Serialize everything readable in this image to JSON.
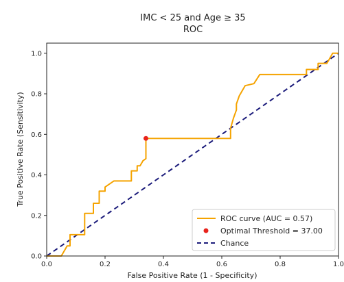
{
  "chart_data": {
    "type": "line",
    "title": "IMC < 25 and Age ≥ 35",
    "subtitle": "ROC",
    "xlabel": "False Positive Rate (1 - Specificity)",
    "ylabel": "True Positive Rate (Sensitivity)",
    "xlim": [
      0,
      1
    ],
    "ylim": [
      0,
      1.05
    ],
    "x_ticks": [
      "0.0",
      "0.2",
      "0.4",
      "0.6",
      "0.8",
      "1.0"
    ],
    "y_ticks": [
      "0.0",
      "0.2",
      "0.4",
      "0.6",
      "0.8",
      "1.0"
    ],
    "grid": false,
    "legend_position": "lower-right",
    "series": [
      {
        "name": "ROC curve (AUC = 0.57)",
        "color": "#f5a300",
        "style": "solid",
        "x": [
          0,
          0.05,
          0.07,
          0.08,
          0.08,
          0.12,
          0.13,
          0.13,
          0.16,
          0.16,
          0.18,
          0.18,
          0.2,
          0.2,
          0.23,
          0.24,
          0.29,
          0.29,
          0.31,
          0.31,
          0.32,
          0.33,
          0.34,
          0.34,
          0.58,
          0.63,
          0.63,
          0.64,
          0.65,
          0.65,
          0.66,
          0.68,
          0.71,
          0.73,
          0.89,
          0.89,
          0.93,
          0.93,
          0.96,
          0.97,
          0.98,
          1.0
        ],
        "y": [
          0,
          0,
          0.05,
          0.05,
          0.105,
          0.105,
          0.105,
          0.21,
          0.21,
          0.26,
          0.26,
          0.32,
          0.32,
          0.34,
          0.37,
          0.37,
          0.37,
          0.42,
          0.42,
          0.445,
          0.445,
          0.47,
          0.48,
          0.58,
          0.58,
          0.58,
          0.63,
          0.68,
          0.72,
          0.75,
          0.79,
          0.84,
          0.85,
          0.895,
          0.895,
          0.92,
          0.92,
          0.95,
          0.95,
          0.975,
          1.0,
          1.0
        ]
      },
      {
        "name": "Chance",
        "color": "#1a1a7a",
        "style": "dashed",
        "x": [
          0,
          1
        ],
        "y": [
          0,
          1
        ]
      }
    ],
    "markers": [
      {
        "name": "Optimal Threshold = 37.00",
        "color": "#e8231c",
        "x": 0.34,
        "y": 0.58
      }
    ]
  }
}
